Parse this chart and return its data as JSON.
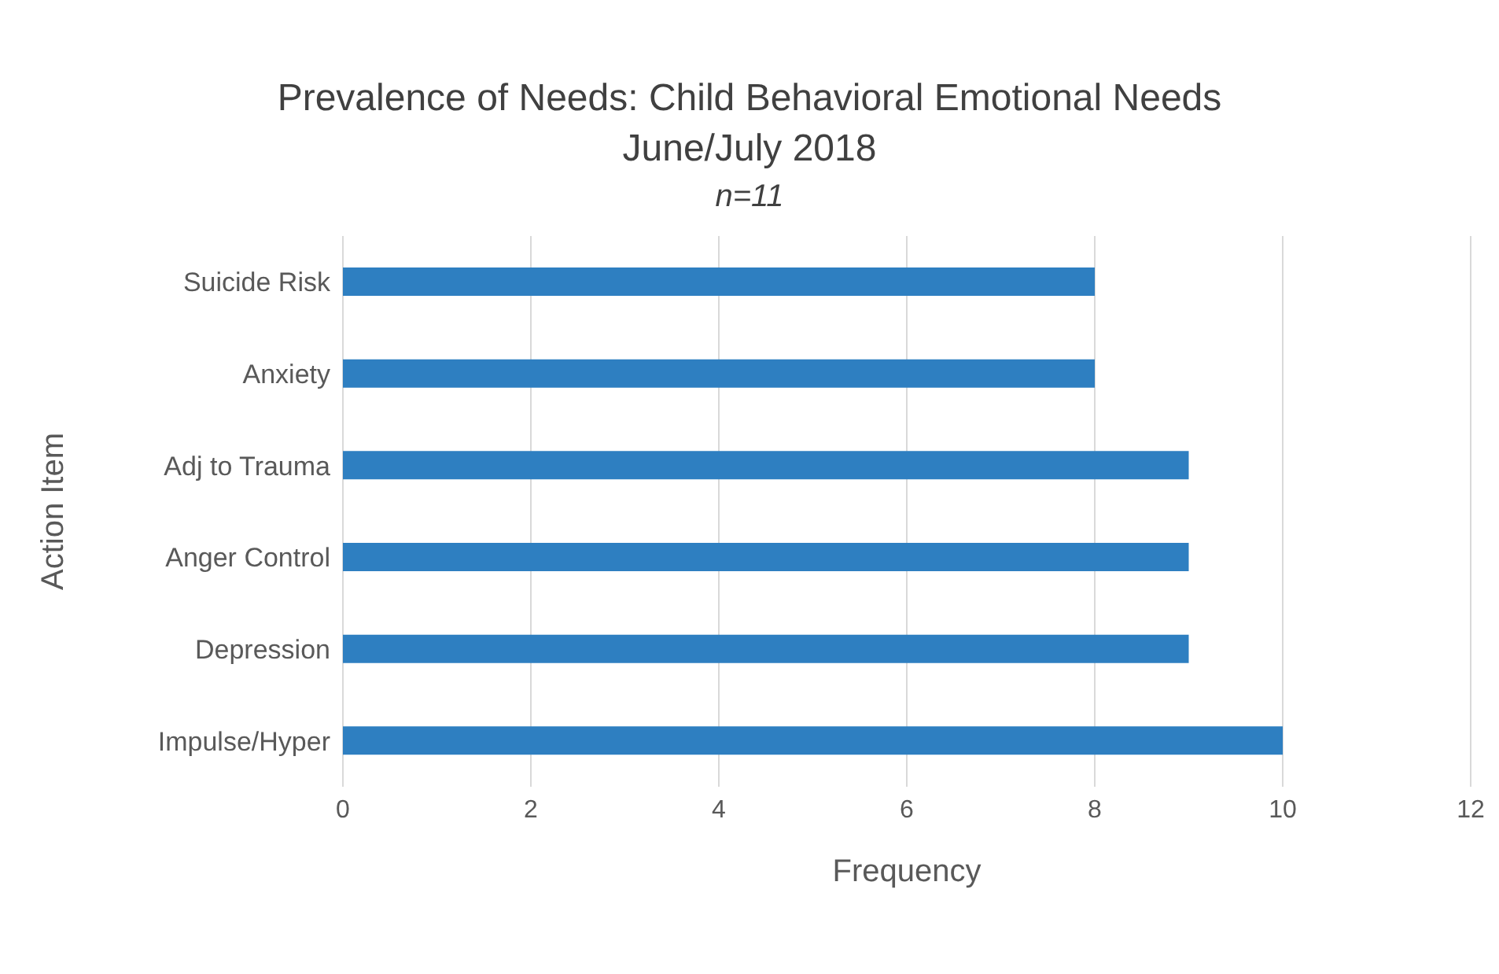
{
  "chart_data": {
    "type": "bar",
    "orientation": "horizontal",
    "title": "Prevalence of Needs: Child Behavioral Emotional Needs",
    "subtitle": "June/July 2018",
    "annotations": [
      "n=11"
    ],
    "xlabel": "Frequency",
    "ylabel": "Action Item",
    "categories": [
      "Suicide Risk",
      "Anxiety",
      "Adj to Trauma",
      "Anger Control",
      "Depression",
      "Impulse/Hyper"
    ],
    "values": [
      8,
      8,
      9,
      9,
      9,
      10
    ],
    "color": "#2e7fc1",
    "xlim": [
      0,
      12
    ],
    "xticks": [
      0,
      2,
      4,
      6,
      8,
      10,
      12
    ],
    "grid": "x",
    "legend": false
  }
}
